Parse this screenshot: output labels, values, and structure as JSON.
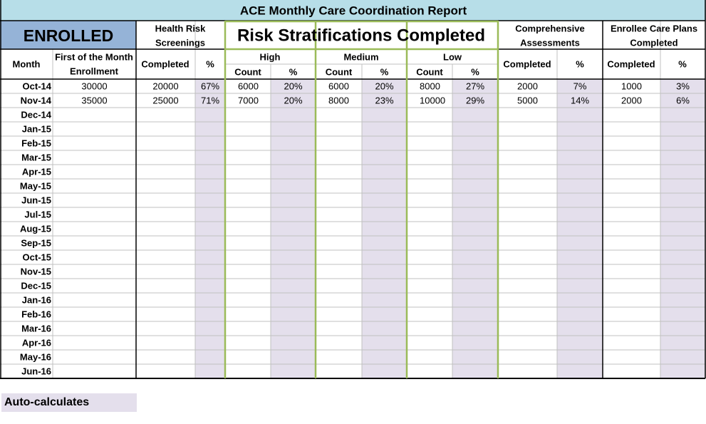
{
  "title": "ACE Monthly Care Coordination Report",
  "enrolled_label": "ENROLLED",
  "groups": {
    "hrs": [
      "Health Risk",
      "Screenings"
    ],
    "risk": "Risk Stratifications Completed",
    "comp": [
      "Comprehensive",
      "Assessments"
    ],
    "ecp": [
      "Enrollee Care Plans",
      "Completed"
    ]
  },
  "subgroups": {
    "high": "High",
    "medium": "Medium",
    "low": "Low"
  },
  "headers": {
    "month": "Month",
    "enrollment": [
      "First of the Month",
      "Enrollment"
    ],
    "completed": "Completed",
    "pct": "%",
    "count": "Count"
  },
  "rows": [
    {
      "month": "Oct-14",
      "enroll": "30000",
      "hrs_c": "20000",
      "hrs_p": "67%",
      "hi_c": "6000",
      "hi_p": "20%",
      "med_c": "6000",
      "med_p": "20%",
      "low_c": "8000",
      "low_p": "27%",
      "ca_c": "2000",
      "ca_p": "7%",
      "ecp_c": "1000",
      "ecp_p": "3%"
    },
    {
      "month": "Nov-14",
      "enroll": "35000",
      "hrs_c": "25000",
      "hrs_p": "71%",
      "hi_c": "7000",
      "hi_p": "20%",
      "med_c": "8000",
      "med_p": "23%",
      "low_c": "10000",
      "low_p": "29%",
      "ca_c": "5000",
      "ca_p": "14%",
      "ecp_c": "2000",
      "ecp_p": "6%"
    },
    {
      "month": "Dec-14"
    },
    {
      "month": "Jan-15"
    },
    {
      "month": "Feb-15"
    },
    {
      "month": "Mar-15"
    },
    {
      "month": "Apr-15"
    },
    {
      "month": "May-15"
    },
    {
      "month": "Jun-15"
    },
    {
      "month": "Jul-15"
    },
    {
      "month": "Aug-15"
    },
    {
      "month": "Sep-15"
    },
    {
      "month": "Oct-15"
    },
    {
      "month": "Nov-15"
    },
    {
      "month": "Dec-15"
    },
    {
      "month": "Jan-16"
    },
    {
      "month": "Feb-16"
    },
    {
      "month": "Mar-16"
    },
    {
      "month": "Apr-16"
    },
    {
      "month": "May-16"
    },
    {
      "month": "Jun-16"
    }
  ],
  "legend": "Auto-calculates",
  "colors": {
    "title_bg": "#b7dee8",
    "enrolled_bg": "#95b3d7",
    "auto_calc_bg": "#e4dfec",
    "risk_border": "#9bbb59",
    "grid": "#c0c0c0"
  }
}
